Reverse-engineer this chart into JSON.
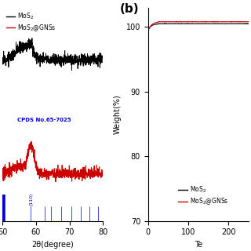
{
  "panel_a": {
    "xlim": [
      50,
      80
    ],
    "xlabel": "2θ(degree)",
    "jcpds_text": "CPDS No.65-7025",
    "jcpds_color": "#0000ee",
    "ref_lines_x": [
      58.5,
      62.5,
      64.5,
      67.5,
      70.5,
      73.5,
      76.0,
      78.5
    ],
    "ref_bar_x": 50.2,
    "label_110_text": "(110)"
  },
  "panel_b": {
    "xlim": [
      0,
      250
    ],
    "ylim": [
      70,
      103
    ],
    "xlabel": "Te",
    "ylabel": "Weight(%)",
    "yticks": [
      70,
      80,
      90,
      100
    ],
    "xticks": [
      0,
      100,
      200
    ],
    "panel_label": "(b)"
  },
  "mos2_color": "#000000",
  "gnss_color": "#cc0000",
  "blue_color": "#0000dd",
  "legend_mos2": "MoS$_2$",
  "legend_gnss": "MoS$_2$@GNSs",
  "background_color": "#ffffff",
  "font_size": 7
}
